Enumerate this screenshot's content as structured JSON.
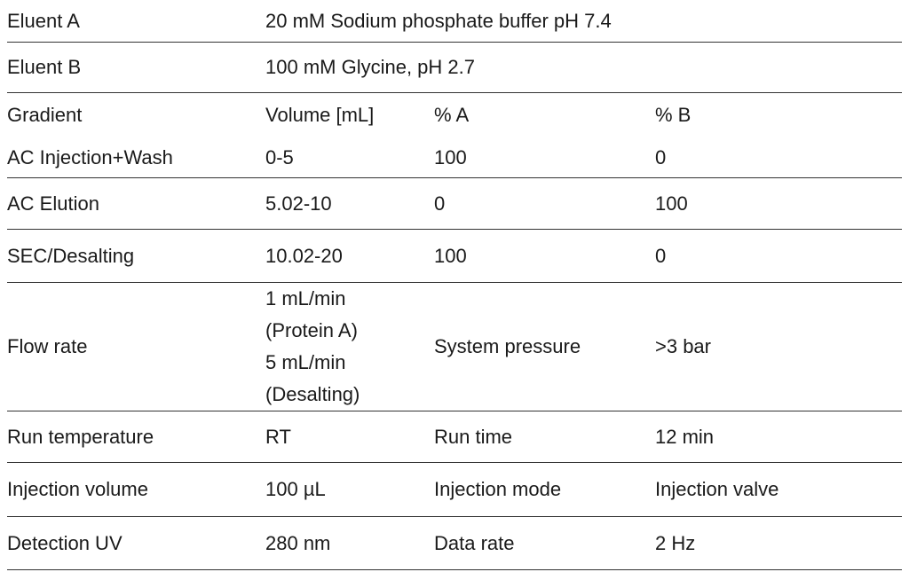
{
  "table": {
    "eluent_a": {
      "label": "Eluent A",
      "value": "20 mM Sodium phosphate buffer pH 7.4"
    },
    "eluent_b": {
      "label": "Eluent B",
      "value": "100 mM Glycine, pH 2.7"
    },
    "gradient_header": {
      "label": "Gradient",
      "volume": "Volume [mL]",
      "pct_a": "% A",
      "pct_b": "% B"
    },
    "gradient_steps": [
      {
        "step": "AC Injection+Wash",
        "volume": "0-5",
        "pct_a": "100",
        "pct_b": "0"
      },
      {
        "step": "AC Elution",
        "volume": "5.02-10",
        "pct_a": "0",
        "pct_b": "100"
      },
      {
        "step": "SEC/Desalting",
        "volume": "10.02-20",
        "pct_a": "100",
        "pct_b": "0"
      }
    ],
    "flow_rate": {
      "label": "Flow rate",
      "lines": [
        "1 mL/min",
        "(Protein A)",
        "5 mL/min",
        "(Desalting)"
      ],
      "param_label": "System pressure",
      "param_value": ">3 bar"
    },
    "run_temperature": {
      "label": "Run temperature",
      "value": "RT",
      "param_label": "Run time",
      "param_value": "12 min"
    },
    "injection_volume": {
      "label": "Injection volume",
      "value": "100 µL",
      "param_label": "Injection mode",
      "param_value": "Injection valve"
    },
    "detection": {
      "label": "Detection UV",
      "value": "280 nm",
      "param_label": "Data rate",
      "param_value": "2 Hz"
    }
  }
}
